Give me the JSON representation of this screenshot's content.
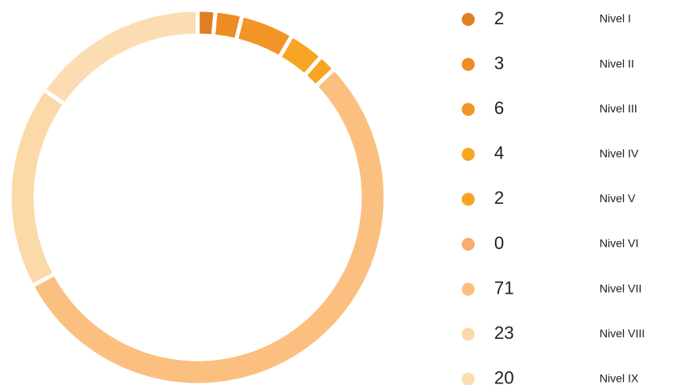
{
  "chart_data": {
    "type": "donut",
    "categories": [
      "Nivel I",
      "Nivel II",
      "Nivel III",
      "Nivel IV",
      "Nivel V",
      "Nivel VI",
      "Nivel VII",
      "Nivel VIII",
      "Nivel IX"
    ],
    "values": [
      2,
      3,
      6,
      4,
      2,
      0,
      71,
      23,
      20
    ],
    "colors": [
      "#e07f22",
      "#ee8c25",
      "#f29427",
      "#f6a623",
      "#f7a520",
      "#f8ad6e",
      "#fbbf80",
      "#fcd9a8",
      "#fcdcb2"
    ]
  }
}
